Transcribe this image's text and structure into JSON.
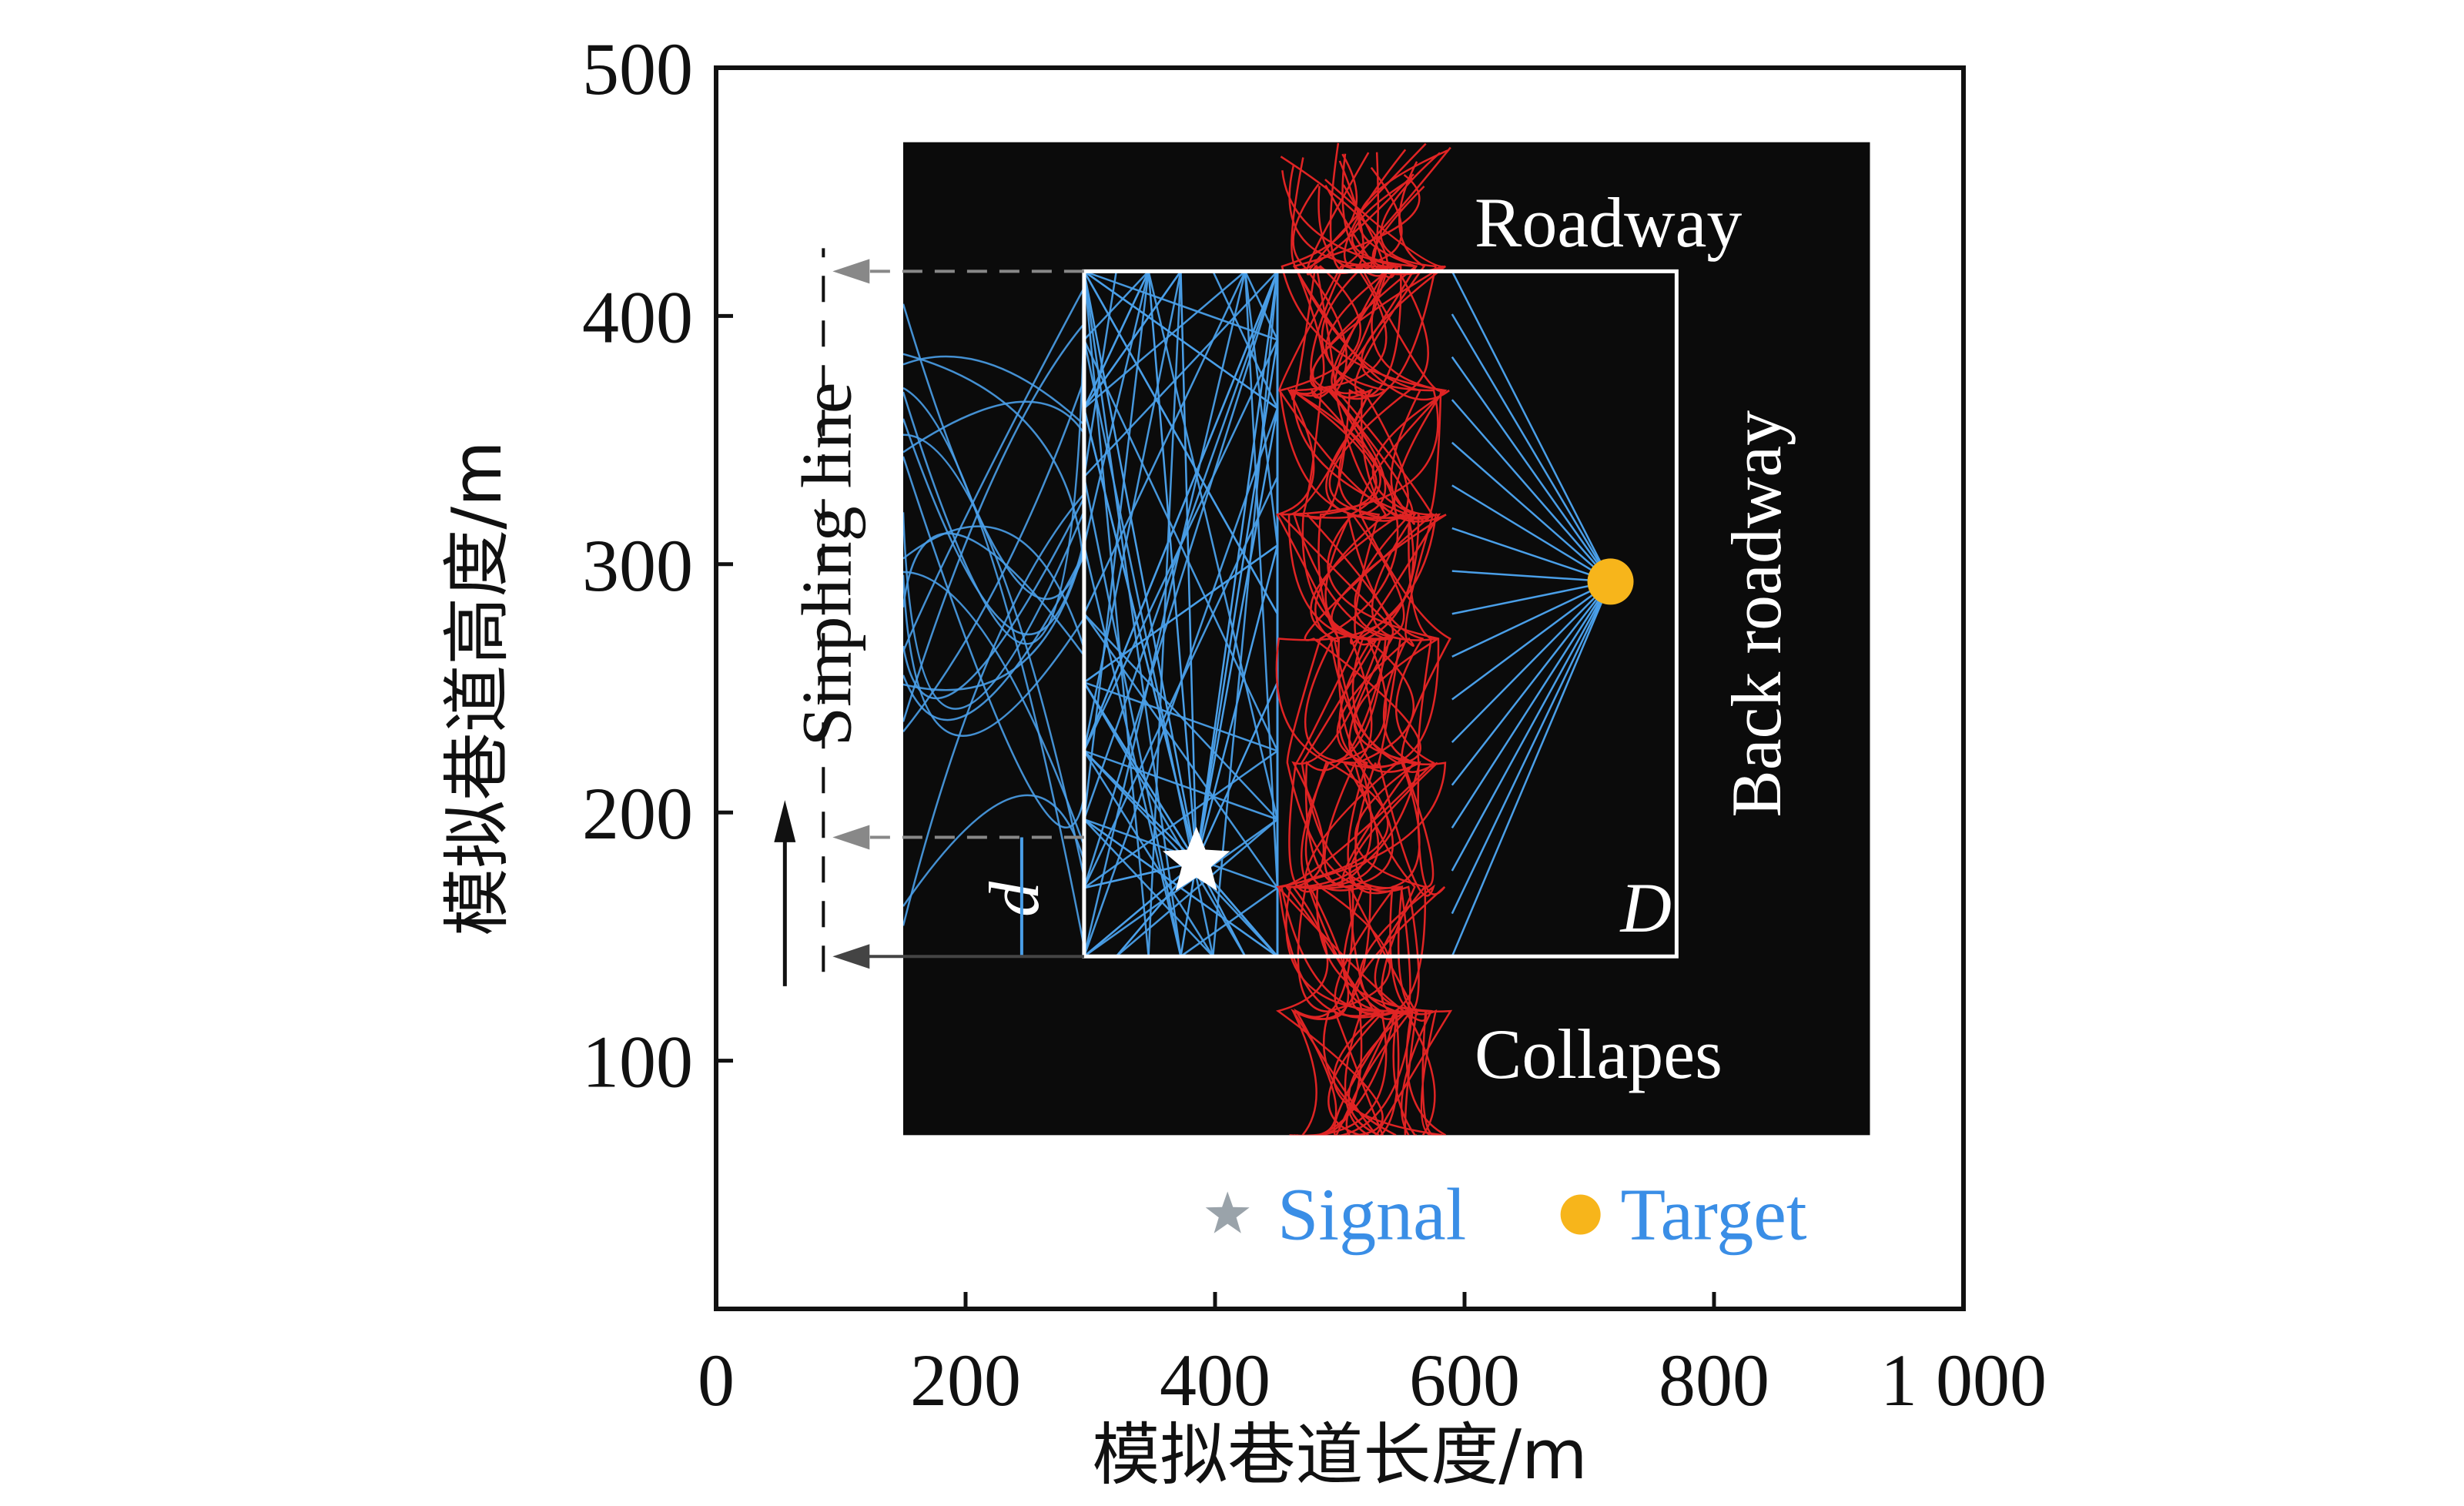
{
  "chart_data": {
    "type": "scatter",
    "xlabel": "模拟巷道长度/m",
    "ylabel": "模拟巷道高度/m",
    "xlim": [
      0,
      1000
    ],
    "ylim": [
      0,
      500
    ],
    "x_ticks": [
      "0",
      "200",
      "400",
      "600",
      "800",
      "1 000"
    ],
    "y_ticks": [
      "100",
      "200",
      "300",
      "400",
      "500"
    ],
    "x_tick_values": [
      0,
      200,
      400,
      600,
      800,
      1000
    ],
    "y_tick_values": [
      100,
      200,
      300,
      400,
      500
    ],
    "regions": {
      "dark_area": {
        "x": [
          150,
          925
        ],
        "y": [
          70,
          470
        ]
      },
      "sampling_box": {
        "x": [
          295,
          770
        ],
        "y": [
          142,
          418
        ]
      },
      "red_band": {
        "x": [
          450,
          590
        ]
      }
    },
    "signal": {
      "x": 385,
      "y": 180
    },
    "target": {
      "x": 717,
      "y": 293
    },
    "labels": {
      "roadway": "Roadway",
      "back_roadway": "Back roadway",
      "collapes": "Collapes",
      "sampling_line": "Sinpling line",
      "d_small": "d",
      "d_big": "D"
    },
    "legend": [
      {
        "name": "Signal",
        "marker": "star",
        "color": "#9aa3aa"
      },
      {
        "name": "Target",
        "marker": "circle",
        "color": "#f7b51b"
      }
    ],
    "colors": {
      "blue_path": "#4a9fe8",
      "red_path": "#e02424",
      "legend_text": "#3a8ee6",
      "background": "#0b0b0b"
    },
    "sampling_line_y": [
      142,
      190,
      418
    ]
  }
}
